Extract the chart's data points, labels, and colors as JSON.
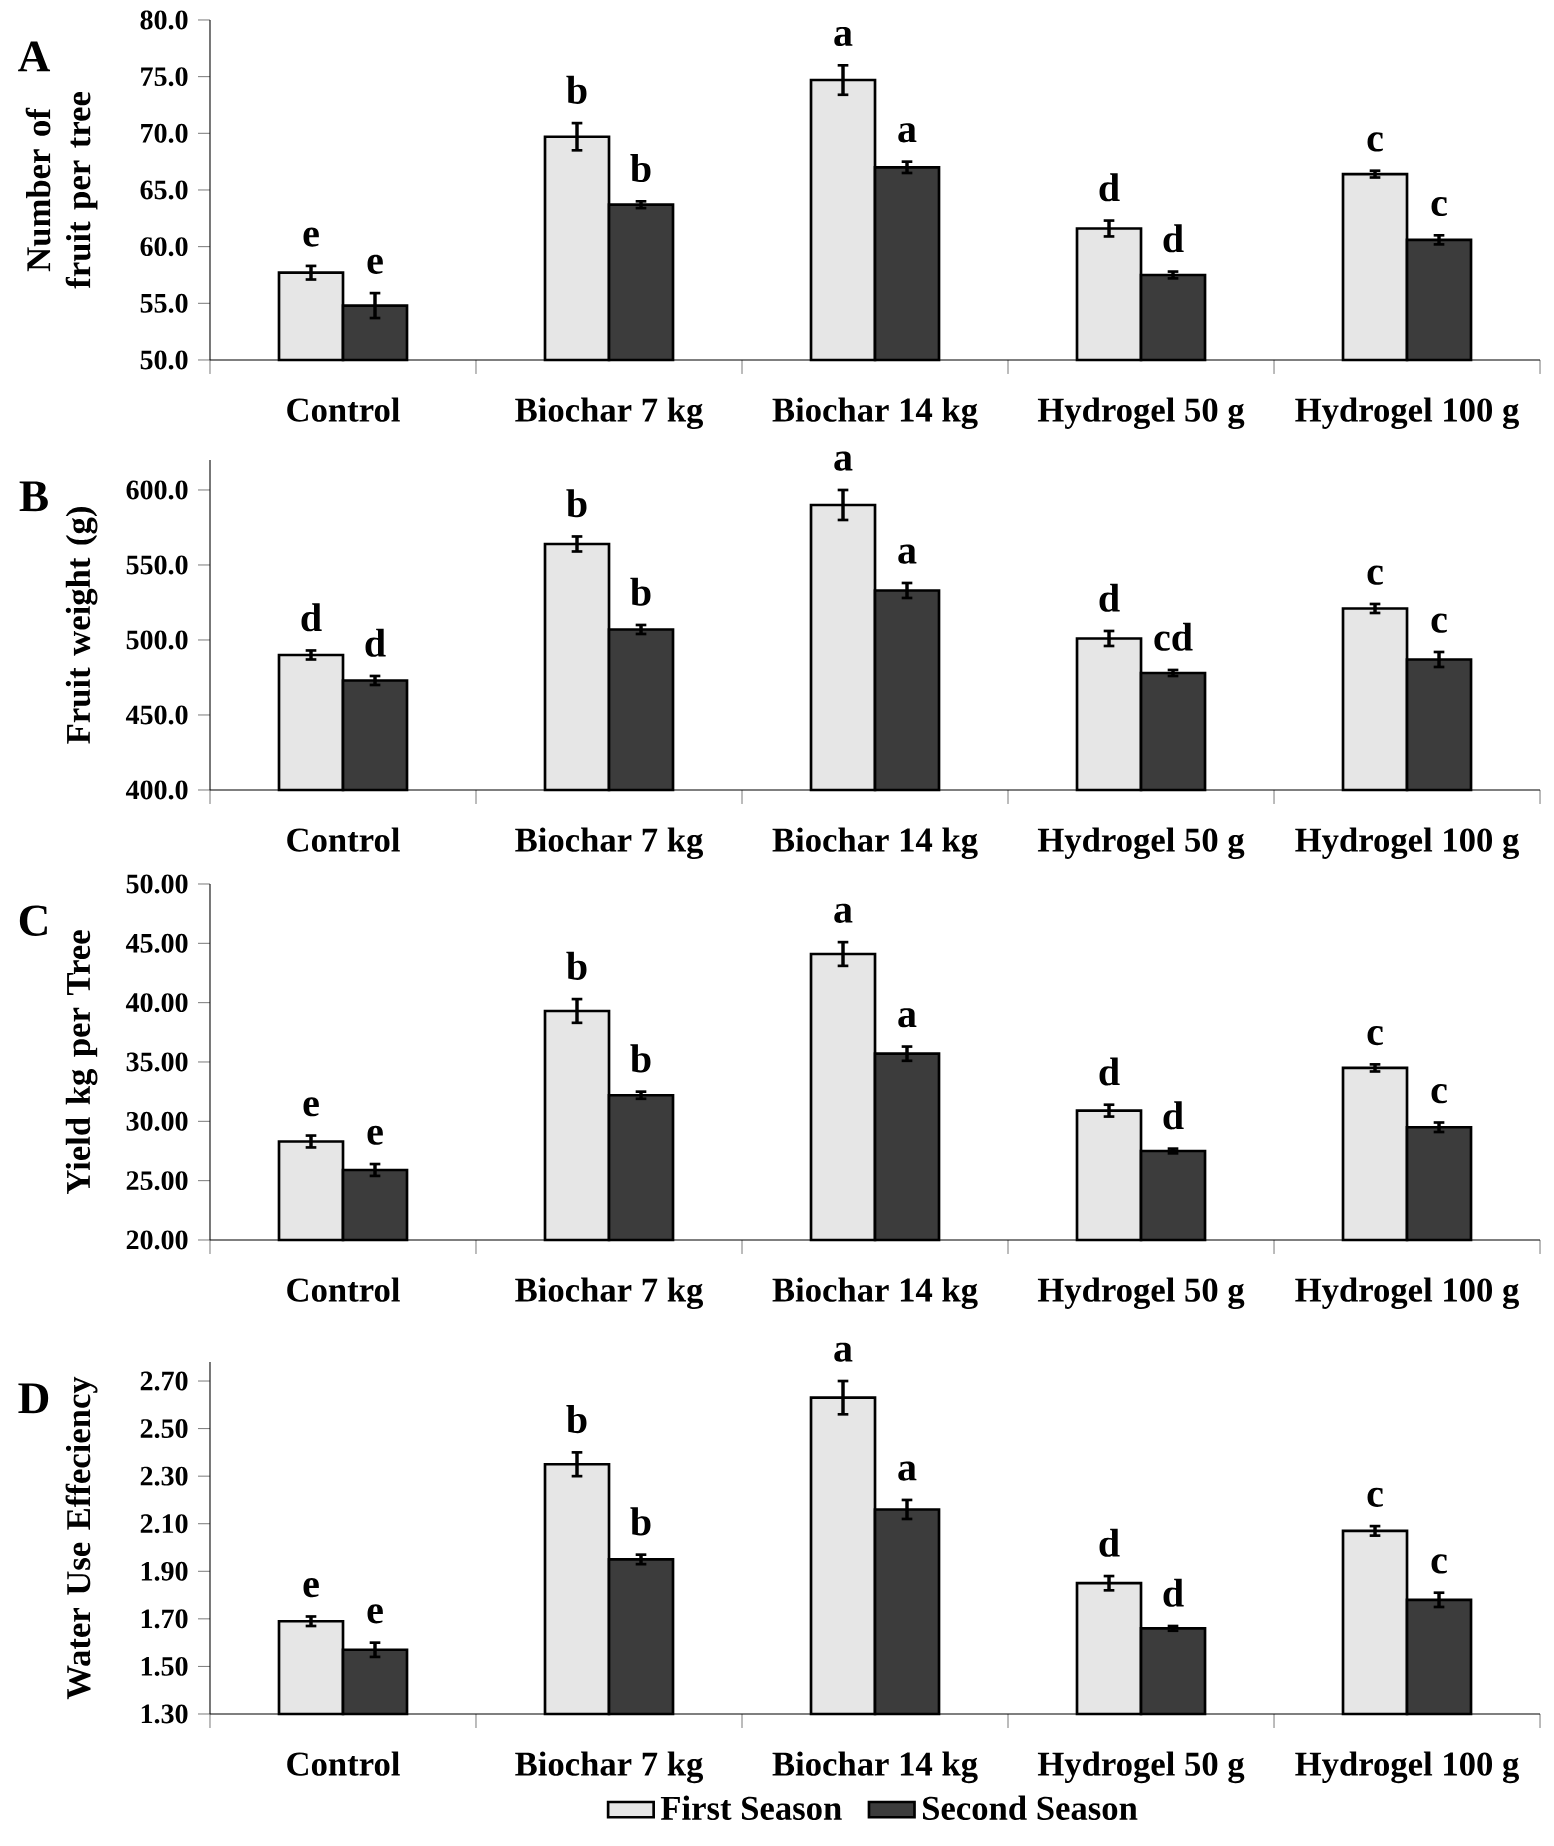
{
  "chart_data": [
    {
      "type": "bar",
      "title": "A",
      "ylabel": "Number of fruit per tree",
      "categories": [
        "Control",
        "Biochar 7 kg",
        "Biochar 14 kg",
        "Hydrogel 50 g",
        "Hydrogel 100 g"
      ],
      "ylim": [
        50,
        80
      ],
      "yticks": [
        {
          "value": 50,
          "label": "50.0"
        },
        {
          "value": 55,
          "label": "55.0"
        },
        {
          "value": 60,
          "label": "60.0"
        },
        {
          "value": 65,
          "label": "65.0"
        },
        {
          "value": 70,
          "label": "70.0"
        },
        {
          "value": 75,
          "label": "75.0"
        },
        {
          "value": 80,
          "label": "80.0"
        }
      ],
      "series": [
        {
          "color": "#e6e6e6",
          "values": [
            57.7,
            69.7,
            74.7,
            61.6,
            66.4
          ],
          "errors": [
            0.6,
            1.2,
            1.3,
            0.7,
            0.3
          ],
          "value_labels": [
            "e",
            "b",
            "a",
            "d",
            "c"
          ]
        },
        {
          "color": "#3c3c3c",
          "values": [
            54.8,
            63.7,
            67.0,
            57.5,
            60.6
          ],
          "errors": [
            1.1,
            0.3,
            0.5,
            0.3,
            0.4
          ],
          "value_labels": [
            "e",
            "b",
            "a",
            "d",
            "c"
          ]
        }
      ]
    },
    {
      "type": "bar",
      "title": "B",
      "ylabel": "Fruit weight (g)",
      "categories": [
        "Control",
        "Biochar 7 kg",
        "Biochar 14 kg",
        "Hydrogel 50 g",
        "Hydrogel 100 g"
      ],
      "ylim": [
        400,
        620
      ],
      "yticks": [
        {
          "value": 400,
          "label": "400.0"
        },
        {
          "value": 450,
          "label": "450.0"
        },
        {
          "value": 500,
          "label": "500.0"
        },
        {
          "value": 550,
          "label": "550.0"
        },
        {
          "value": 600,
          "label": "600.0"
        }
      ],
      "series": [
        {
          "color": "#e6e6e6",
          "values": [
            490,
            564,
            590,
            501,
            521
          ],
          "errors": [
            3,
            5,
            10,
            5,
            3
          ],
          "value_labels": [
            "d",
            "b",
            "a",
            "d",
            "c"
          ]
        },
        {
          "color": "#3c3c3c",
          "values": [
            473,
            507,
            533,
            478,
            487
          ],
          "errors": [
            3,
            3,
            5,
            2,
            5
          ],
          "value_labels": [
            "d",
            "b",
            "a",
            "cd",
            "c"
          ]
        }
      ]
    },
    {
      "type": "bar",
      "title": "C",
      "ylabel": "Yield kg per Tree",
      "categories": [
        "Control",
        "Biochar 7 kg",
        "Biochar 14 kg",
        "Hydrogel 50 g",
        "Hydrogel 100 g"
      ],
      "ylim": [
        20,
        50
      ],
      "yticks": [
        {
          "value": 20,
          "label": "20.00"
        },
        {
          "value": 25,
          "label": "25.00"
        },
        {
          "value": 30,
          "label": "30.00"
        },
        {
          "value": 35,
          "label": "35.00"
        },
        {
          "value": 40,
          "label": "40.00"
        },
        {
          "value": 45,
          "label": "45.00"
        },
        {
          "value": 50,
          "label": "50.00"
        }
      ],
      "series": [
        {
          "color": "#e6e6e6",
          "values": [
            28.3,
            39.3,
            44.1,
            30.9,
            34.5
          ],
          "errors": [
            0.5,
            1.0,
            1.0,
            0.5,
            0.3
          ],
          "value_labels": [
            "e",
            "b",
            "a",
            "d",
            "c"
          ]
        },
        {
          "color": "#3c3c3c",
          "values": [
            25.9,
            32.2,
            35.7,
            27.5,
            29.5
          ],
          "errors": [
            0.5,
            0.3,
            0.6,
            0.2,
            0.4
          ],
          "value_labels": [
            "e",
            "b",
            "a",
            "d",
            "c"
          ]
        }
      ]
    },
    {
      "type": "bar",
      "title": "D",
      "ylabel": "Water Use Effeciency",
      "categories": [
        "Control",
        "Biochar 7 kg",
        "Biochar 14 kg",
        "Hydrogel 50 g",
        "Hydrogel 100 g"
      ],
      "ylim": [
        1.3,
        2.78
      ],
      "yticks": [
        {
          "value": 1.3,
          "label": "1.30"
        },
        {
          "value": 1.5,
          "label": "1.50"
        },
        {
          "value": 1.7,
          "label": "1.70"
        },
        {
          "value": 1.9,
          "label": "1.90"
        },
        {
          "value": 2.1,
          "label": "2.10"
        },
        {
          "value": 2.3,
          "label": "2.30"
        },
        {
          "value": 2.5,
          "label": "2.50"
        },
        {
          "value": 2.7,
          "label": "2.70"
        }
      ],
      "legend": "bottom",
      "series": [
        {
          "name": "First Season",
          "color": "#e6e6e6",
          "values": [
            1.69,
            2.35,
            2.63,
            1.85,
            2.07
          ],
          "errors": [
            0.02,
            0.05,
            0.07,
            0.03,
            0.02
          ],
          "value_labels": [
            "e",
            "b",
            "a",
            "d",
            "c"
          ]
        },
        {
          "name": "Second Season",
          "color": "#3c3c3c",
          "values": [
            1.57,
            1.95,
            2.16,
            1.66,
            1.78
          ],
          "errors": [
            0.03,
            0.02,
            0.04,
            0.01,
            0.03
          ],
          "value_labels": [
            "e",
            "b",
            "a",
            "d",
            "c"
          ]
        }
      ]
    }
  ]
}
